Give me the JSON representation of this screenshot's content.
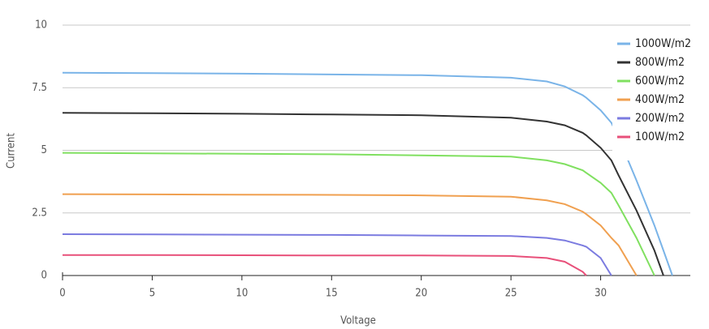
{
  "chart_data": {
    "type": "line",
    "x_label": "Voltage",
    "y_label": "Current",
    "x": [
      0,
      5,
      10,
      15,
      20,
      25,
      27,
      28,
      29,
      29.2,
      30,
      30.6,
      31,
      32,
      33,
      33.5,
      34
    ],
    "series": [
      {
        "name": "1000W/m2",
        "color": "#7ab4e8",
        "values": [
          8.1,
          8.08,
          8.06,
          8.03,
          8.0,
          7.9,
          7.75,
          7.55,
          7.2,
          7.1,
          6.6,
          6.1,
          5.5,
          3.8,
          2.0,
          1.0,
          0
        ]
      },
      {
        "name": "800W/m2",
        "color": "#333333",
        "values": [
          6.5,
          6.48,
          6.46,
          6.43,
          6.4,
          6.3,
          6.15,
          6.0,
          5.7,
          5.6,
          5.1,
          4.6,
          4.0,
          2.6,
          1.0,
          0,
          null
        ]
      },
      {
        "name": "600W/m2",
        "color": "#80e060",
        "values": [
          4.9,
          4.88,
          4.86,
          4.84,
          4.8,
          4.75,
          4.6,
          4.45,
          4.2,
          4.1,
          3.7,
          3.3,
          2.8,
          1.5,
          0,
          null,
          null
        ]
      },
      {
        "name": "400W/m2",
        "color": "#f0a050",
        "values": [
          3.25,
          3.24,
          3.23,
          3.22,
          3.2,
          3.15,
          3.0,
          2.85,
          2.55,
          2.45,
          2.0,
          1.5,
          1.2,
          0,
          null,
          null,
          null
        ]
      },
      {
        "name": "200W/m2",
        "color": "#7b7be0",
        "values": [
          1.65,
          1.64,
          1.63,
          1.62,
          1.6,
          1.58,
          1.5,
          1.4,
          1.2,
          1.15,
          0.7,
          0,
          null,
          null,
          null,
          null,
          null
        ]
      },
      {
        "name": "100W/m2",
        "color": "#e8507a",
        "values": [
          0.82,
          0.82,
          0.81,
          0.8,
          0.8,
          0.78,
          0.7,
          0.55,
          0.15,
          0,
          null,
          null,
          null,
          null,
          null,
          null,
          null
        ]
      }
    ],
    "xlim": [
      0,
      35
    ],
    "ylim": [
      0,
      10
    ],
    "xticks": [
      0,
      5,
      10,
      15,
      20,
      25,
      30
    ],
    "yticks": [
      0,
      2.5,
      5,
      7.5,
      10
    ],
    "grid": true,
    "legend": "top-right"
  }
}
